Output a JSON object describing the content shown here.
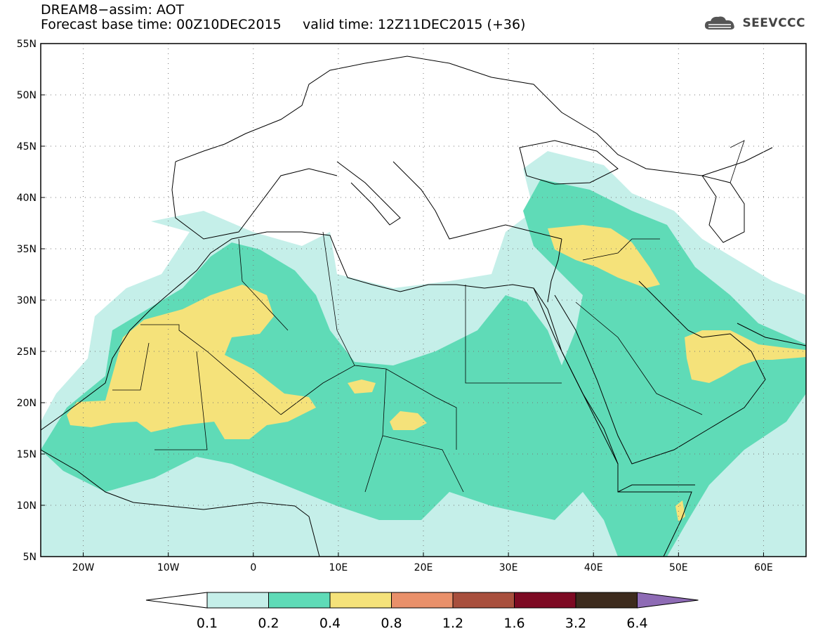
{
  "header": {
    "title": "DREAM8−assim: AOT",
    "base_time": "Forecast base time: 00Z10DEC2015",
    "valid_time": "valid time: 12Z11DEC2015 (+36)"
  },
  "logo": {
    "text": "SEEVCCC",
    "icon": "cloud-logo-icon"
  },
  "map": {
    "projection": "equirectangular",
    "lon_range": [
      -25,
      65
    ],
    "lat_range": [
      5,
      55
    ],
    "lat_ticks": [
      {
        "value": 55,
        "label": "55N"
      },
      {
        "value": 50,
        "label": "50N"
      },
      {
        "value": 45,
        "label": "45N"
      },
      {
        "value": 40,
        "label": "40N"
      },
      {
        "value": 35,
        "label": "35N"
      },
      {
        "value": 30,
        "label": "30N"
      },
      {
        "value": 25,
        "label": "25N"
      },
      {
        "value": 20,
        "label": "20N"
      },
      {
        "value": 15,
        "label": "15N"
      },
      {
        "value": 10,
        "label": "10N"
      },
      {
        "value": 5,
        "label": "5N"
      }
    ],
    "lon_ticks": [
      {
        "value": -20,
        "label": "20W"
      },
      {
        "value": -10,
        "label": "10W"
      },
      {
        "value": 0,
        "label": "0"
      },
      {
        "value": 10,
        "label": "10E"
      },
      {
        "value": 20,
        "label": "20E"
      },
      {
        "value": 30,
        "label": "30E"
      },
      {
        "value": 40,
        "label": "40E"
      },
      {
        "value": 50,
        "label": "50E"
      },
      {
        "value": 60,
        "label": "60E"
      }
    ],
    "grid": "dotted"
  },
  "colorbar": {
    "levels": [
      "0.1",
      "0.2",
      "0.4",
      "0.8",
      "1.2",
      "1.6",
      "3.2",
      "6.4"
    ],
    "colors": [
      "#ffffff",
      "#c5efe9",
      "#5fdbb7",
      "#f5e27a",
      "#e9906a",
      "#a84f3d",
      "#7d0a23",
      "#3d2b1d",
      "#8e6bb5"
    ]
  },
  "field": {
    "colors": {
      "c1": "#c5efe9",
      "c2": "#5fdbb7",
      "c3": "#f5e27a"
    }
  }
}
